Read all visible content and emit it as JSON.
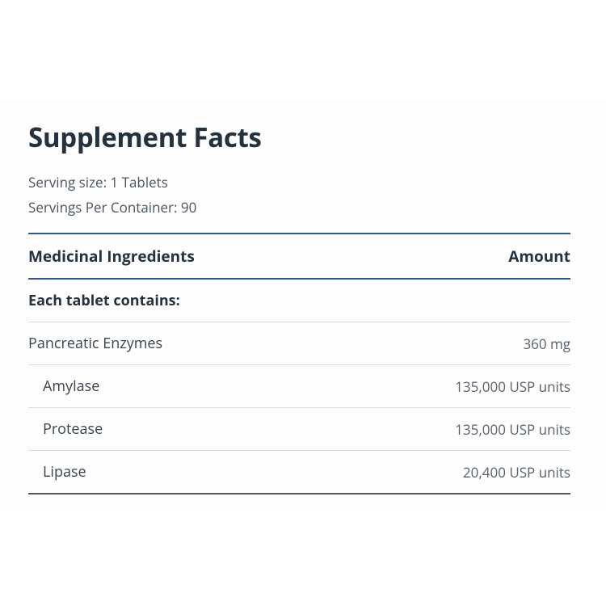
{
  "title": "Supplement Facts",
  "serving_size_label": "Serving size:",
  "serving_size_value": "1 Tablets",
  "servings_per_container_label": "Servings Per Container:",
  "servings_per_container_value": "90",
  "columns": {
    "ingredient": "Medicinal Ingredients",
    "amount": "Amount"
  },
  "subheading": "Each tablet contains:",
  "rows": [
    {
      "name": "Pancreatic Enzymes",
      "amount": "360 mg",
      "indent": false
    },
    {
      "name": "Amylase",
      "amount": "135,000 USP units",
      "indent": true
    },
    {
      "name": "Protease",
      "amount": "135,000 USP units",
      "indent": true
    },
    {
      "name": "Lipase",
      "amount": "20,400 USP units",
      "indent": true
    }
  ],
  "colors": {
    "title": "#24313f",
    "body": "#3a444f",
    "muted": "#59626c",
    "rule_blue": "#2a5a9a",
    "rule_grey": "#d8dde2",
    "rule_dark": "#56585b",
    "panel_bg": "#fdfdfd"
  }
}
